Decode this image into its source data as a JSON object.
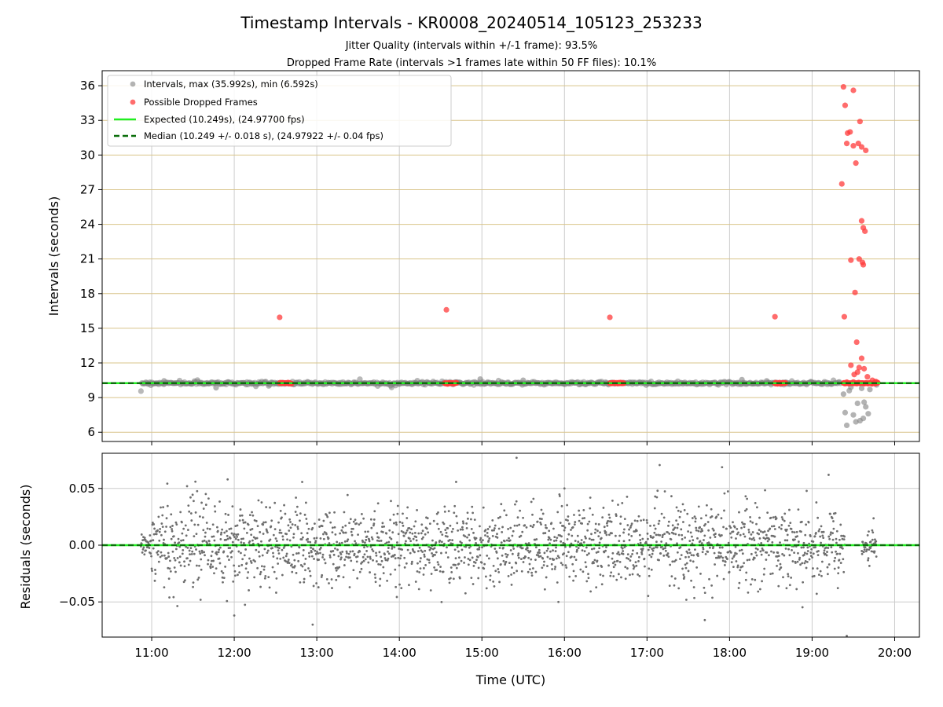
{
  "title": "Timestamp Intervals - KR0008_20240514_105123_253233",
  "subtitle_lines": [
    "Jitter Quality (intervals within +/-1 frame): 93.5%",
    "Dropped Frame Rate (intervals >1 frames late within 50 FF files): 10.1%"
  ],
  "colors": {
    "normal_points": "#808080",
    "dropped_points": "#ff3b3b",
    "expected_line": "#22ee22",
    "median_line": "#0a6e0a",
    "y_grid": "#d9c48a",
    "x_grid": "#cccccc",
    "residual_points": "#6e6e6e"
  },
  "chart_data": [
    {
      "type": "scatter",
      "panel": "top",
      "ylabel": "Intervals (seconds)",
      "xlim_hours": [
        10.4,
        20.3
      ],
      "ylim": [
        5.2,
        37.3
      ],
      "yticks": [
        "6",
        "9",
        "12",
        "15",
        "18",
        "21",
        "24",
        "27",
        "30",
        "33",
        "36"
      ],
      "grid": "on",
      "legend_placement": "upper-left",
      "legend": [
        "Intervals, max (35.992s), min (6.592s)",
        "Possible Dropped Frames",
        "Expected (10.249s), (24.97700 fps)",
        "Median (10.249 +/- 0.018 s), (24.97922 +/- 0.04 fps)"
      ],
      "expected_interval": 10.249,
      "median_interval": 10.249,
      "normal_outliers": [
        {
          "x": 11.15,
          "y": 10.45
        },
        {
          "x": 11.78,
          "y": 9.85
        },
        {
          "x": 14.98,
          "y": 10.6
        },
        {
          "x": 15.5,
          "y": 10.5
        },
        {
          "x": 18.15,
          "y": 10.55
        },
        {
          "x": 18.45,
          "y": 10.45
        },
        {
          "x": 19.38,
          "y": 9.3
        },
        {
          "x": 19.4,
          "y": 7.7
        },
        {
          "x": 19.42,
          "y": 6.6
        },
        {
          "x": 19.45,
          "y": 9.6
        },
        {
          "x": 19.5,
          "y": 7.5
        },
        {
          "x": 19.55,
          "y": 8.5
        },
        {
          "x": 19.58,
          "y": 7.0
        },
        {
          "x": 19.6,
          "y": 9.8
        },
        {
          "x": 19.62,
          "y": 7.2
        },
        {
          "x": 19.65,
          "y": 8.2
        },
        {
          "x": 19.68,
          "y": 7.6
        },
        {
          "x": 19.7,
          "y": 9.7
        },
        {
          "x": 19.47,
          "y": 9.9
        },
        {
          "x": 19.53,
          "y": 6.9
        },
        {
          "x": 19.63,
          "y": 8.6
        },
        {
          "x": 19.78,
          "y": 10.1
        }
      ],
      "dropped_clusters": [
        {
          "x_start": 12.55,
          "x_end": 12.7,
          "y": 10.25
        },
        {
          "x_start": 14.55,
          "x_end": 14.7,
          "y": 10.25
        },
        {
          "x_start": 16.55,
          "x_end": 16.72,
          "y": 10.25
        },
        {
          "x_start": 18.55,
          "x_end": 18.68,
          "y": 10.25
        },
        {
          "x_start": 19.38,
          "x_end": 19.8,
          "y": 10.25
        }
      ],
      "dropped_points": [
        {
          "x": 12.55,
          "y": 15.95
        },
        {
          "x": 14.57,
          "y": 16.6
        },
        {
          "x": 16.55,
          "y": 15.95
        },
        {
          "x": 18.55,
          "y": 16.0
        },
        {
          "x": 19.36,
          "y": 27.5
        },
        {
          "x": 19.38,
          "y": 35.9
        },
        {
          "x": 19.4,
          "y": 34.3
        },
        {
          "x": 19.42,
          "y": 31.0
        },
        {
          "x": 19.43,
          "y": 31.9
        },
        {
          "x": 19.46,
          "y": 32.0
        },
        {
          "x": 19.5,
          "y": 35.6
        },
        {
          "x": 19.5,
          "y": 30.8
        },
        {
          "x": 19.53,
          "y": 29.3
        },
        {
          "x": 19.56,
          "y": 31.0
        },
        {
          "x": 19.58,
          "y": 32.9
        },
        {
          "x": 19.6,
          "y": 30.7
        },
        {
          "x": 19.65,
          "y": 30.4
        },
        {
          "x": 19.6,
          "y": 24.3
        },
        {
          "x": 19.62,
          "y": 23.7
        },
        {
          "x": 19.64,
          "y": 23.4
        },
        {
          "x": 19.47,
          "y": 20.9
        },
        {
          "x": 19.57,
          "y": 21.0
        },
        {
          "x": 19.61,
          "y": 20.7
        },
        {
          "x": 19.62,
          "y": 20.5
        },
        {
          "x": 19.52,
          "y": 18.1
        },
        {
          "x": 19.39,
          "y": 16.0
        },
        {
          "x": 19.54,
          "y": 13.8
        },
        {
          "x": 19.6,
          "y": 12.4
        },
        {
          "x": 19.47,
          "y": 11.8
        },
        {
          "x": 19.57,
          "y": 11.6
        },
        {
          "x": 19.55,
          "y": 11.2
        },
        {
          "x": 19.63,
          "y": 11.5
        },
        {
          "x": 19.51,
          "y": 11.0
        },
        {
          "x": 19.67,
          "y": 10.8
        },
        {
          "x": 19.73,
          "y": 10.5
        },
        {
          "x": 19.77,
          "y": 10.4
        }
      ]
    },
    {
      "type": "scatter",
      "panel": "bottom",
      "xlabel": "Time (UTC)",
      "ylabel": "Residuals (seconds)",
      "xlim_hours": [
        10.4,
        20.3
      ],
      "ylim": [
        -0.081,
        0.081
      ],
      "yticks": [
        "−0.05",
        "0.00",
        "0.05"
      ],
      "xticks": [
        "11:00",
        "12:00",
        "13:00",
        "14:00",
        "15:00",
        "16:00",
        "17:00",
        "18:00",
        "19:00",
        "20:00"
      ],
      "grid": "on",
      "x_start_hour": 10.87,
      "x_end_hour": 19.78,
      "residual_spread_sd": 0.018,
      "notable_points": [
        {
          "x": 11.92,
          "y": 0.058
        },
        {
          "x": 15.42,
          "y": 0.077
        },
        {
          "x": 12.95,
          "y": -0.07
        },
        {
          "x": 19.2,
          "y": 0.062
        },
        {
          "x": 19.42,
          "y": -0.08
        },
        {
          "x": 12.0,
          "y": -0.062
        },
        {
          "x": 17.7,
          "y": -0.066
        },
        {
          "x": 16.0,
          "y": 0.05
        }
      ]
    }
  ]
}
